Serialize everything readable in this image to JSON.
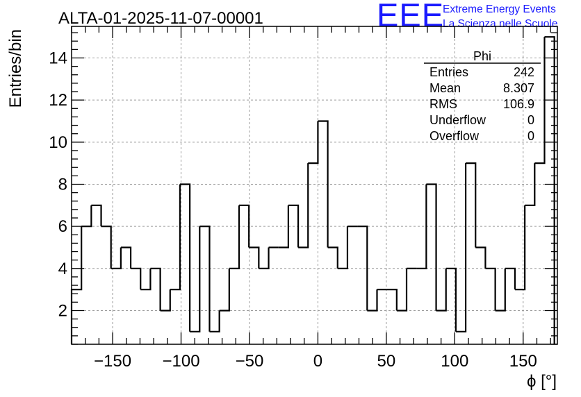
{
  "brand": {
    "logo_text": "EEE",
    "line1": "Extreme Energy Events",
    "line2": "La Scienza nelle Scuole",
    "color": "#1a1aff"
  },
  "chart_data": {
    "type": "bar",
    "histogram_style": "step",
    "title": "ALTA-01-2025-11-07-00001",
    "xlabel": "ϕ [°]",
    "ylabel": "Entries/bin",
    "xlim": [
      -180,
      175
    ],
    "ylim": [
      0.4,
      15.5
    ],
    "x_ticks": [
      -150,
      -100,
      -50,
      0,
      50,
      100,
      150
    ],
    "x_tick_labels": [
      "−150",
      "−100",
      "−50",
      "0",
      "50",
      "100",
      "150"
    ],
    "y_ticks": [
      2,
      4,
      6,
      8,
      10,
      12,
      14
    ],
    "y_tick_labels": [
      "2",
      "4",
      "6",
      "8",
      "10",
      "12",
      "14"
    ],
    "grid": true,
    "bin_width": 7.2,
    "bin_start": -180,
    "values": [
      3,
      6,
      7,
      6,
      4,
      5,
      4,
      3,
      4,
      2,
      3,
      8,
      1,
      6,
      1,
      2,
      4,
      7,
      5,
      4,
      5,
      5,
      7,
      5,
      9,
      11,
      5,
      4,
      6,
      6,
      2,
      3,
      3,
      2,
      4,
      4,
      8,
      2,
      4,
      1,
      9,
      5,
      4,
      2,
      4,
      3,
      7,
      9,
      15
    ],
    "stats": {
      "name": "Phi",
      "rows": [
        {
          "label": "Entries",
          "value": "242"
        },
        {
          "label": "Mean",
          "value": "8.307"
        },
        {
          "label": "RMS",
          "value": "106.9"
        },
        {
          "label": "Underflow",
          "value": "0"
        },
        {
          "label": "Overflow",
          "value": "0"
        }
      ]
    },
    "line_color": "#000000",
    "grid_color": "#9a9a9a"
  }
}
